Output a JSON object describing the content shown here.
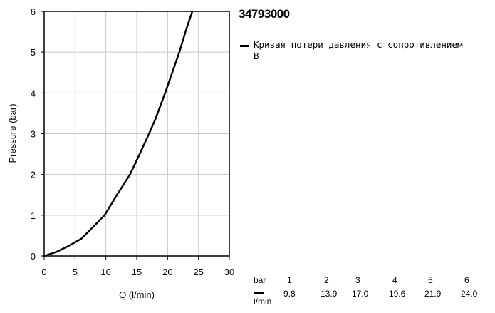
{
  "product_id": "34793000",
  "legend": {
    "label": "Кривая потери давления с сопротивлением B",
    "line_color": "#000000"
  },
  "chart_data": {
    "type": "line",
    "xlabel": "Q (l/min)",
    "ylabel": "Pressure (bar)",
    "xlim": [
      0,
      30
    ],
    "ylim": [
      0,
      6
    ],
    "x_ticks": [
      0,
      5,
      10,
      15,
      20,
      25,
      30
    ],
    "y_ticks": [
      0,
      1,
      2,
      3,
      4,
      5,
      6
    ],
    "grid": true,
    "legend_position": "right",
    "series": [
      {
        "name": "Кривая потери давления с сопротивлением B",
        "color": "#000000",
        "x": [
          0,
          2,
          4,
          6,
          8,
          9.8,
          12,
          13.9,
          15,
          17.0,
          18,
          19.6,
          21.9,
          23,
          24.0
        ],
        "y": [
          0,
          0.1,
          0.25,
          0.42,
          0.72,
          1,
          1.55,
          2,
          2.35,
          3,
          3.35,
          4,
          5,
          5.55,
          6
        ]
      }
    ]
  },
  "table": {
    "row1_label": "bar",
    "row2_label": "l/min",
    "pressures": [
      "1",
      "2",
      "3",
      "4",
      "5",
      "6"
    ],
    "flows": [
      "9.8",
      "13.9",
      "17.0",
      "19.6",
      "21.9",
      "24.0"
    ]
  }
}
